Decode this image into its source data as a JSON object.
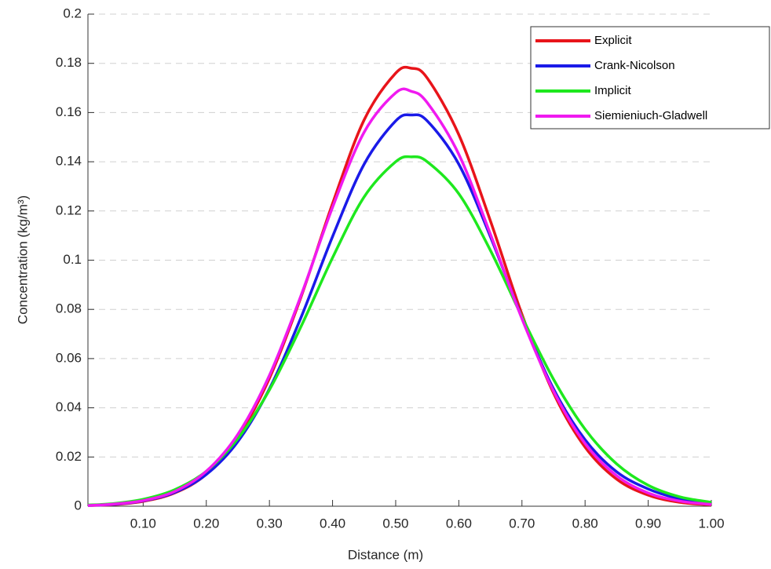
{
  "chart_data": {
    "type": "line",
    "xlabel": "Distance (m)",
    "ylabel": "Concentration (kg/m³)",
    "x": [
      0.0125,
      0.05,
      0.1,
      0.15,
      0.2,
      0.25,
      0.3,
      0.35,
      0.4,
      0.45,
      0.5,
      0.525,
      0.55,
      0.6,
      0.65,
      0.7,
      0.75,
      0.8,
      0.85,
      0.9,
      0.95,
      1.0
    ],
    "series": [
      {
        "name": "Explicit",
        "color": "#e8141a",
        "values": [
          0.0003,
          0.0006,
          0.002,
          0.0054,
          0.013,
          0.028,
          0.052,
          0.085,
          0.123,
          0.157,
          0.176,
          0.178,
          0.174,
          0.151,
          0.116,
          0.078,
          0.046,
          0.024,
          0.011,
          0.0045,
          0.0016,
          0.0005
        ]
      },
      {
        "name": "Crank-Nicolson",
        "color": "#1a1ae8",
        "values": [
          0.0003,
          0.0007,
          0.0022,
          0.0056,
          0.0129,
          0.0263,
          0.0477,
          0.0767,
          0.1096,
          0.139,
          0.1566,
          0.159,
          0.1566,
          0.139,
          0.1096,
          0.0767,
          0.0477,
          0.027,
          0.014,
          0.007,
          0.003,
          0.001
        ]
      },
      {
        "name": "Implicit",
        "color": "#1ee81e",
        "values": [
          0.0005,
          0.001,
          0.0028,
          0.0067,
          0.0142,
          0.0275,
          0.0473,
          0.073,
          0.101,
          0.1257,
          0.14,
          0.142,
          0.14,
          0.127,
          0.104,
          0.077,
          0.0516,
          0.0313,
          0.0172,
          0.0085,
          0.0038,
          0.0016
        ]
      },
      {
        "name": "Siemieniuch-Gladwell",
        "color": "#f01af0",
        "values": [
          0.0003,
          0.0008,
          0.0023,
          0.006,
          0.0142,
          0.0292,
          0.0532,
          0.0856,
          0.1215,
          0.152,
          0.168,
          0.1686,
          0.164,
          0.143,
          0.1106,
          0.0762,
          0.0468,
          0.0255,
          0.0124,
          0.0054,
          0.0021,
          0.0007
        ]
      }
    ],
    "xlim": [
      0.0125,
      1.0
    ],
    "xticks": [
      {
        "value": 0.1,
        "label": "0.10"
      },
      {
        "value": 0.2,
        "label": "0.20"
      },
      {
        "value": 0.3,
        "label": "0.30"
      },
      {
        "value": 0.4,
        "label": "0.40"
      },
      {
        "value": 0.5,
        "label": "0.50"
      },
      {
        "value": 0.6,
        "label": "0.60"
      },
      {
        "value": 0.7,
        "label": "0.70"
      },
      {
        "value": 0.8,
        "label": "0.80"
      },
      {
        "value": 0.9,
        "label": "0.90"
      },
      {
        "value": 1.0,
        "label": "1.00"
      }
    ],
    "ylim": [
      0,
      0.2
    ],
    "yticks": [
      0,
      0.02,
      0.04,
      0.06,
      0.08,
      0.1,
      0.12,
      0.14,
      0.16,
      0.18,
      0.2
    ],
    "grid": true,
    "legend": "upper-right"
  }
}
